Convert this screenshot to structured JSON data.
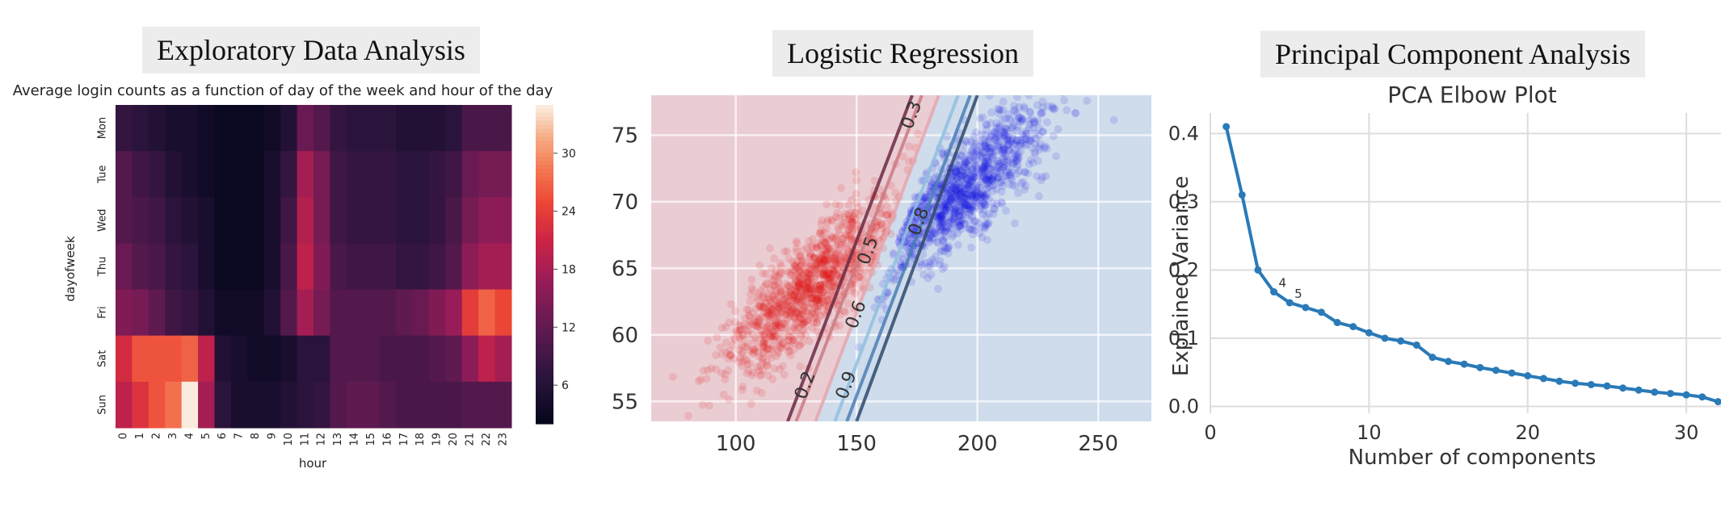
{
  "panels": {
    "eda": {
      "title": "Exploratory Data Analysis"
    },
    "logreg": {
      "title": "Logistic Regression"
    },
    "pca": {
      "title": "Principal Component Analysis"
    }
  },
  "chart_data": [
    {
      "type": "heatmap",
      "title": "Average login counts as a function of day of the week and hour of the day",
      "xlabel": "hour",
      "ylabel": "dayofweek",
      "x": [
        "0",
        "1",
        "2",
        "3",
        "4",
        "5",
        "6",
        "7",
        "8",
        "9",
        "10",
        "11",
        "12",
        "13",
        "14",
        "15",
        "16",
        "17",
        "18",
        "19",
        "20",
        "21",
        "22",
        "23"
      ],
      "y": [
        "Mon",
        "Tue",
        "Wed",
        "Thu",
        "Fri",
        "Sat",
        "Sun"
      ],
      "colorbar_ticks": [
        6,
        12,
        18,
        24,
        30
      ],
      "vmin": 2,
      "vmax": 35,
      "values": [
        [
          8,
          7,
          6,
          5,
          5,
          4,
          3,
          3,
          3,
          4,
          6,
          13,
          11,
          8,
          7,
          7,
          7,
          6,
          6,
          6,
          7,
          10,
          10,
          10
        ],
        [
          11,
          9,
          8,
          6,
          5,
          4,
          3,
          3,
          3,
          5,
          8,
          18,
          14,
          9,
          8,
          8,
          8,
          7,
          7,
          8,
          9,
          13,
          14,
          14
        ],
        [
          11,
          10,
          9,
          7,
          6,
          5,
          3,
          3,
          3,
          5,
          9,
          19,
          14,
          9,
          8,
          8,
          8,
          7,
          7,
          8,
          10,
          14,
          16,
          16
        ],
        [
          13,
          11,
          10,
          8,
          7,
          5,
          3,
          3,
          3,
          5,
          10,
          20,
          15,
          10,
          9,
          9,
          9,
          8,
          8,
          9,
          11,
          16,
          18,
          18
        ],
        [
          15,
          14,
          12,
          9,
          8,
          6,
          4,
          4,
          4,
          6,
          11,
          18,
          14,
          11,
          11,
          11,
          11,
          12,
          13,
          15,
          17,
          24,
          27,
          25
        ],
        [
          22,
          26,
          26,
          26,
          27,
          20,
          6,
          5,
          4,
          4,
          5,
          7,
          7,
          11,
          11,
          11,
          10,
          10,
          10,
          11,
          12,
          16,
          20,
          18
        ],
        [
          20,
          23,
          26,
          28,
          35,
          18,
          7,
          5,
          5,
          5,
          6,
          7,
          8,
          11,
          12,
          12,
          11,
          10,
          10,
          10,
          10,
          11,
          11,
          11
        ]
      ]
    },
    {
      "type": "scatter",
      "title": "",
      "xlabel": "",
      "ylabel": "",
      "xlim": [
        65,
        272
      ],
      "ylim": [
        53.5,
        78
      ],
      "xticks": [
        100,
        150,
        200,
        250
      ],
      "yticks": [
        55,
        60,
        65,
        70,
        75
      ],
      "series": [
        {
          "color": "#dd1111",
          "center": [
            130,
            63.5
          ],
          "x_range": [
            80,
            175
          ]
        },
        {
          "color": "#1111dd",
          "center": [
            195,
            71
          ],
          "x_range": [
            155,
            260
          ]
        }
      ],
      "contours": [
        {
          "label": "0.2",
          "points": [
            [
              121.5,
              53.5
            ],
            [
              173,
              78
            ]
          ],
          "color": "#6b2a44"
        },
        {
          "label": "0.3",
          "points": [
            [
              125,
              53.5
            ],
            [
              177,
              78
            ]
          ],
          "color": "#c97a85"
        },
        {
          "label": "0.5",
          "points": [
            [
              133,
              53.5
            ],
            [
              184,
              78
            ]
          ],
          "color": "#e6a6ad"
        },
        {
          "label": "0.6",
          "points": [
            [
              141,
              53.5
            ],
            [
              192,
              78
            ]
          ],
          "color": "#8fbfe0"
        },
        {
          "label": "0.8",
          "points": [
            [
              146,
              53.5
            ],
            [
              197,
              78
            ]
          ],
          "color": "#4a7fb5"
        },
        {
          "label": "0.9",
          "points": [
            [
              150,
              53.5
            ],
            [
              200,
              78
            ]
          ],
          "color": "#2e4a6b"
        }
      ],
      "contour_labels": [
        {
          "text": "0.3",
          "at": [
            173,
            76.5
          ]
        },
        {
          "text": "0.8",
          "at": [
            176,
            68.5
          ]
        },
        {
          "text": "0.5",
          "at": [
            155,
            66.3
          ]
        },
        {
          "text": "0.6",
          "at": [
            150,
            61.5
          ]
        },
        {
          "text": "0.2",
          "at": [
            129,
            56.2
          ]
        },
        {
          "text": "0.9",
          "at": [
            146,
            56.2
          ]
        }
      ]
    },
    {
      "type": "line",
      "title": "PCA Elbow Plot",
      "xlabel": "Number of components",
      "ylabel": "Explained Variance",
      "xlim": [
        0,
        33
      ],
      "ylim": [
        -0.01,
        0.43
      ],
      "xticks": [
        0,
        10,
        20,
        30
      ],
      "yticks": [
        0.0,
        0.1,
        0.2,
        0.3,
        0.4
      ],
      "x": [
        1,
        2,
        3,
        4,
        5,
        6,
        7,
        8,
        9,
        10,
        11,
        12,
        13,
        14,
        15,
        16,
        17,
        18,
        19,
        20,
        21,
        22,
        23,
        24,
        25,
        26,
        27,
        28,
        29,
        30,
        31,
        32
      ],
      "values": [
        0.41,
        0.31,
        0.2,
        0.168,
        0.152,
        0.145,
        0.138,
        0.123,
        0.117,
        0.108,
        0.1,
        0.096,
        0.09,
        0.072,
        0.066,
        0.062,
        0.057,
        0.053,
        0.049,
        0.045,
        0.041,
        0.037,
        0.034,
        0.032,
        0.03,
        0.027,
        0.024,
        0.021,
        0.019,
        0.017,
        0.014,
        0.007
      ],
      "annotations": [
        {
          "text": "4",
          "x": 4
        },
        {
          "text": "5",
          "x": 5
        }
      ]
    }
  ]
}
